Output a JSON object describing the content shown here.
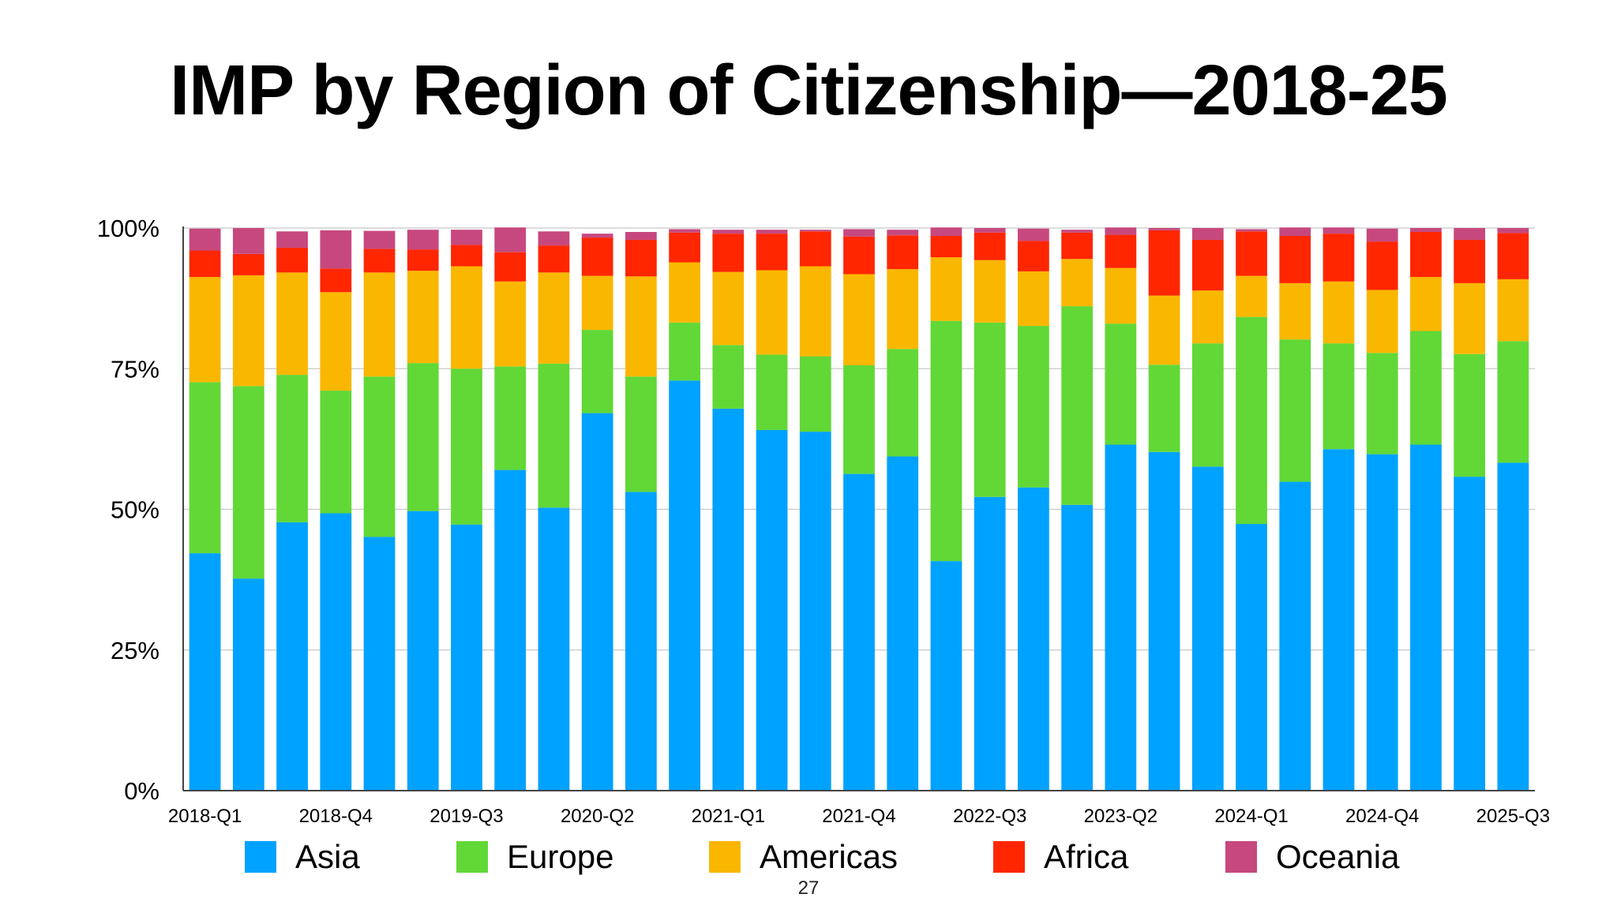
{
  "slide": {
    "title": "IMP by Region of Citizenship—2018-25",
    "page_number": "27"
  },
  "colors": {
    "Asia": "#00A2FF",
    "Europe": "#61D836",
    "Americas": "#FAB700",
    "Africa": "#FF2600",
    "Oceania": "#C7487E",
    "grid": "#d0d0d0",
    "axis": "#444444"
  },
  "chart_data": {
    "type": "bar",
    "stacked": true,
    "title": "IMP by Region of Citizenship—2018-25",
    "xlabel": "",
    "ylabel": "",
    "ylim": [
      0,
      100
    ],
    "y_ticks": [
      "0%",
      "25%",
      "50%",
      "75%",
      "100%"
    ],
    "x_tick_labels_shown": [
      "2018-Q1",
      "2018-Q4",
      "2019-Q3",
      "2020-Q2",
      "2021-Q1",
      "2021-Q4",
      "2022-Q3",
      "2023-Q2",
      "2024-Q1",
      "2024-Q4",
      "2025-Q3"
    ],
    "grid": true,
    "legend_position": "bottom",
    "categories": [
      "2018-Q1",
      "2018-Q2",
      "2018-Q3",
      "2018-Q4",
      "2019-Q1",
      "2019-Q2",
      "2019-Q3",
      "2019-Q4",
      "2020-Q1",
      "2020-Q2",
      "2020-Q3",
      "2020-Q4",
      "2021-Q1",
      "2021-Q2",
      "2021-Q3",
      "2021-Q4",
      "2022-Q1",
      "2022-Q2",
      "2022-Q3",
      "2022-Q4",
      "2023-Q1",
      "2023-Q2",
      "2023-Q3",
      "2023-Q4",
      "2024-Q1",
      "2024-Q2",
      "2024-Q3",
      "2024-Q4",
      "2025-Q1",
      "2025-Q2",
      "2025-Q3"
    ],
    "series": [
      {
        "name": "Asia",
        "values": [
          42.2,
          37.7,
          47.7,
          49.3,
          45.1,
          49.7,
          47.3,
          57.0,
          50.3,
          67.1,
          53.1,
          72.9,
          67.9,
          64.1,
          63.8,
          56.3,
          59.4,
          40.8,
          52.2,
          53.9,
          50.8,
          61.5,
          60.2,
          57.6,
          47.4,
          54.9,
          60.7,
          59.8,
          61.5,
          55.8,
          58.3
        ]
      },
      {
        "name": "Europe",
        "values": [
          30.4,
          34.2,
          26.2,
          21.8,
          28.5,
          26.3,
          27.7,
          18.4,
          25.6,
          14.8,
          20.5,
          10.3,
          11.3,
          13.4,
          13.4,
          19.3,
          19.1,
          42.7,
          31.0,
          28.7,
          35.3,
          21.5,
          15.5,
          21.9,
          36.8,
          25.3,
          18.8,
          18.0,
          20.2,
          21.8,
          21.6
        ]
      },
      {
        "name": "Americas",
        "values": [
          18.7,
          19.7,
          18.2,
          17.5,
          18.5,
          16.4,
          18.2,
          15.1,
          16.2,
          9.6,
          17.8,
          10.7,
          13.0,
          15.0,
          16.0,
          16.2,
          14.2,
          11.3,
          11.1,
          9.7,
          8.4,
          9.9,
          12.3,
          9.4,
          7.3,
          10.0,
          11.0,
          11.2,
          9.6,
          12.6,
          11.0
        ]
      },
      {
        "name": "Africa",
        "values": [
          4.7,
          3.8,
          4.4,
          4.2,
          4.2,
          3.8,
          3.8,
          5.2,
          4.8,
          6.8,
          6.5,
          5.3,
          6.8,
          6.5,
          6.2,
          6.7,
          6.0,
          3.8,
          4.9,
          5.4,
          4.7,
          5.9,
          11.6,
          9.0,
          7.9,
          8.4,
          8.5,
          8.6,
          8.0,
          7.7,
          8.2
        ]
      },
      {
        "name": "Oceania",
        "values": [
          3.9,
          4.6,
          2.9,
          6.8,
          3.2,
          3.5,
          2.7,
          4.4,
          2.5,
          0.7,
          1.4,
          0.6,
          0.7,
          0.7,
          0.3,
          1.3,
          1.0,
          1.5,
          0.8,
          2.2,
          0.5,
          1.3,
          0.4,
          2.1,
          0.4,
          1.5,
          1.1,
          2.3,
          0.7,
          2.1,
          0.9
        ]
      }
    ]
  }
}
